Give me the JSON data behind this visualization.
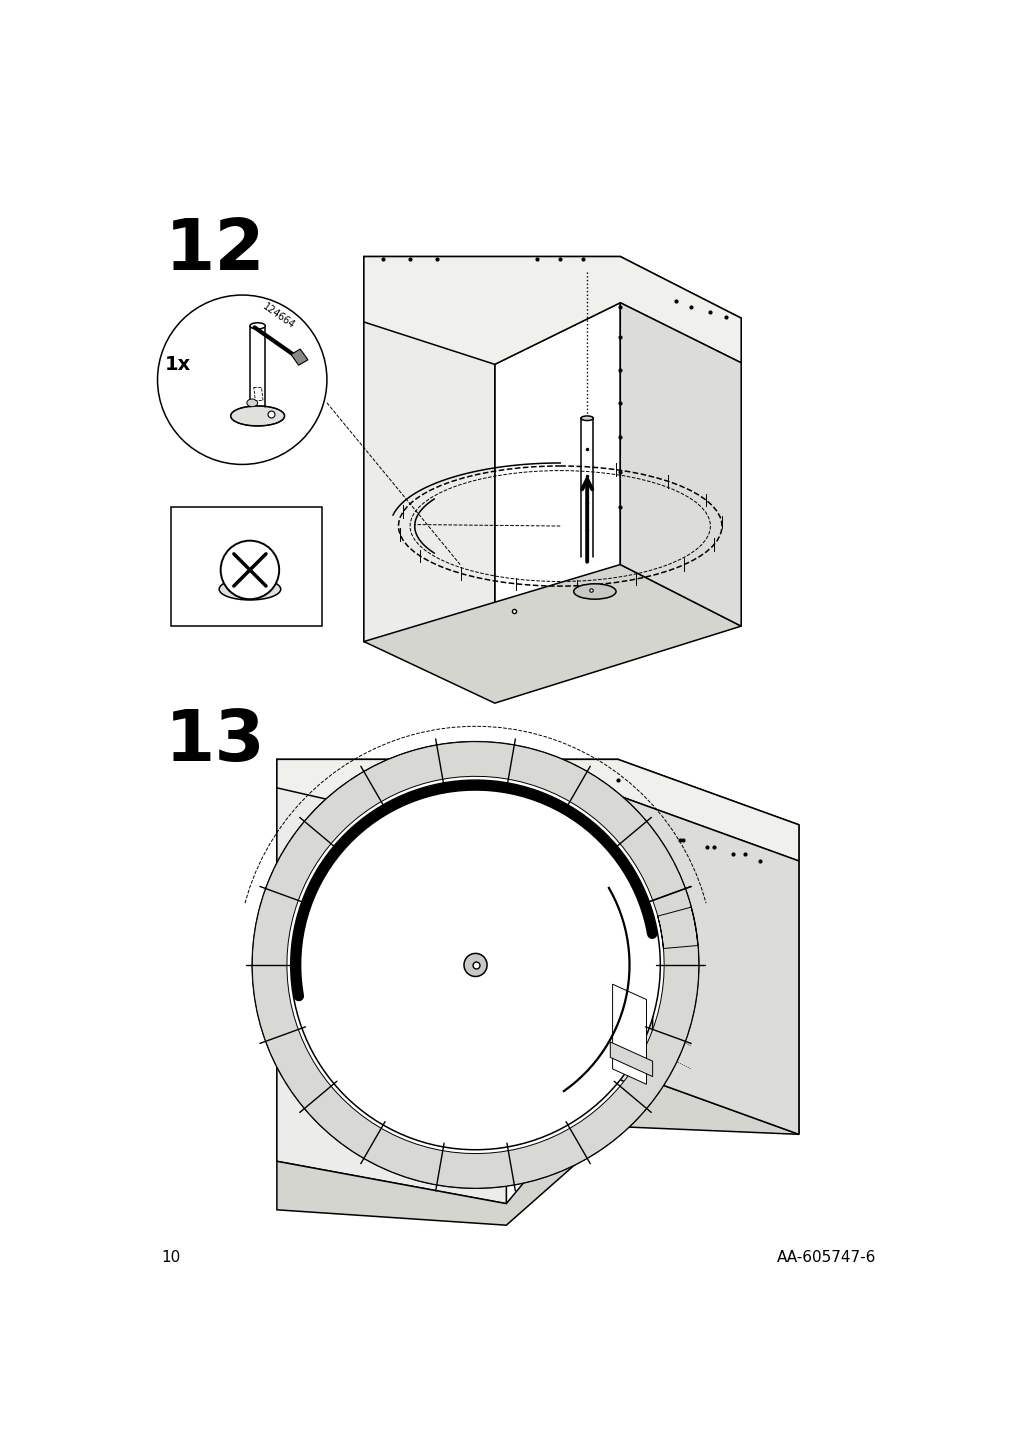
{
  "bg_color": "#ffffff",
  "step12_label": "12",
  "step13_label": "13",
  "page_number": "10",
  "part_code": "AA-605747-6",
  "label_fontsize": 52,
  "footer_fontsize": 11,
  "fig_width": 10.12,
  "fig_height": 14.32,
  "line_color": "#000000",
  "lw_thin": 0.7,
  "lw_med": 1.1,
  "lw_thick": 2.8,
  "lw_xthick": 5.5
}
